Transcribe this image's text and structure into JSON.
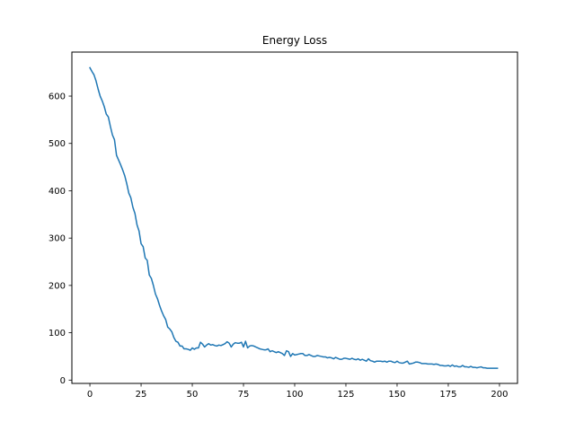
{
  "chart_data": {
    "type": "line",
    "title": "Energy Loss",
    "xlabel": "",
    "ylabel": "",
    "xlim": [
      -8.8,
      208.8
    ],
    "ylim": [
      -7,
      693
    ],
    "xticks": [
      0,
      25,
      50,
      75,
      100,
      125,
      150,
      175,
      200
    ],
    "yticks": [
      0,
      100,
      200,
      300,
      400,
      500,
      600
    ],
    "xtick_labels": [
      "0",
      "25",
      "50",
      "75",
      "100",
      "125",
      "150",
      "175",
      "200"
    ],
    "ytick_labels": [
      "0",
      "100",
      "200",
      "300",
      "400",
      "500",
      "600"
    ],
    "grid": false,
    "legend": false,
    "line_color": "#1f77b4",
    "series": [
      {
        "x": [
          0,
          1,
          2,
          3,
          4,
          5,
          6,
          7,
          8,
          9,
          10,
          11,
          12,
          13,
          14,
          15,
          16,
          17,
          18,
          19,
          20,
          21,
          22,
          23,
          24,
          25,
          26,
          27,
          28,
          29,
          30,
          31,
          32,
          33,
          34,
          35,
          36,
          37,
          38,
          39,
          40,
          41,
          42,
          43,
          44,
          45,
          46,
          47,
          48,
          49,
          50,
          51,
          52,
          53,
          54,
          55,
          56,
          57,
          58,
          59,
          60,
          61,
          62,
          63,
          64,
          65,
          66,
          67,
          68,
          69,
          70,
          71,
          72,
          73,
          74,
          75,
          76,
          77,
          78,
          79,
          80,
          81,
          82,
          83,
          84,
          85,
          86,
          87,
          88,
          89,
          90,
          91,
          92,
          93,
          94,
          95,
          96,
          97,
          98,
          99,
          100,
          101,
          102,
          103,
          104,
          105,
          106,
          107,
          108,
          109,
          110,
          111,
          112,
          113,
          114,
          115,
          116,
          117,
          118,
          119,
          120,
          121,
          122,
          123,
          124,
          125,
          126,
          127,
          128,
          129,
          130,
          131,
          132,
          133,
          134,
          135,
          136,
          137,
          138,
          139,
          140,
          141,
          142,
          143,
          144,
          145,
          146,
          147,
          148,
          149,
          150,
          151,
          152,
          153,
          154,
          155,
          156,
          157,
          158,
          159,
          160,
          161,
          162,
          163,
          164,
          165,
          166,
          167,
          168,
          169,
          170,
          171,
          172,
          173,
          174,
          175,
          176,
          177,
          178,
          179,
          180,
          181,
          182,
          183,
          184,
          185,
          186,
          187,
          188,
          189,
          190,
          191,
          192,
          193,
          194,
          195,
          196,
          197,
          198,
          199
        ],
        "y": [
          660,
          652,
          645,
          632,
          615,
          600,
          590,
          578,
          562,
          556,
          536,
          518,
          508,
          475,
          465,
          455,
          444,
          432,
          415,
          395,
          385,
          365,
          352,
          328,
          315,
          288,
          282,
          258,
          253,
          222,
          215,
          200,
          182,
          172,
          158,
          146,
          136,
          128,
          112,
          108,
          102,
          90,
          82,
          80,
          72,
          72,
          66,
          66,
          65,
          63,
          68,
          65,
          68,
          68,
          80,
          76,
          70,
          74,
          77,
          74,
          75,
          73,
          72,
          74,
          73,
          75,
          77,
          81,
          78,
          70,
          76,
          79,
          78,
          78,
          80,
          70,
          82,
          68,
          72,
          73,
          72,
          70,
          68,
          66,
          65,
          64,
          64,
          66,
          60,
          62,
          60,
          58,
          60,
          58,
          56,
          52,
          62,
          60,
          50,
          56,
          53,
          54,
          55,
          56,
          56,
          52,
          52,
          54,
          52,
          50,
          50,
          52,
          51,
          50,
          49,
          49,
          47,
          48,
          47,
          45,
          48,
          46,
          44,
          44,
          46,
          46,
          45,
          44,
          46,
          44,
          43,
          45,
          42,
          44,
          42,
          40,
          45,
          41,
          40,
          38,
          40,
          40,
          40,
          39,
          40,
          38,
          40,
          40,
          38,
          37,
          40,
          37,
          36,
          36,
          38,
          40,
          34,
          35,
          36,
          38,
          38,
          37,
          35,
          35,
          35,
          34,
          34,
          34,
          33,
          34,
          33,
          31,
          31,
          30,
          30,
          31,
          29,
          32,
          29,
          30,
          28,
          28,
          31,
          28,
          28,
          27,
          29,
          27,
          27,
          26,
          27,
          28,
          26,
          26,
          25,
          25,
          25,
          25,
          25,
          25
        ]
      }
    ]
  }
}
